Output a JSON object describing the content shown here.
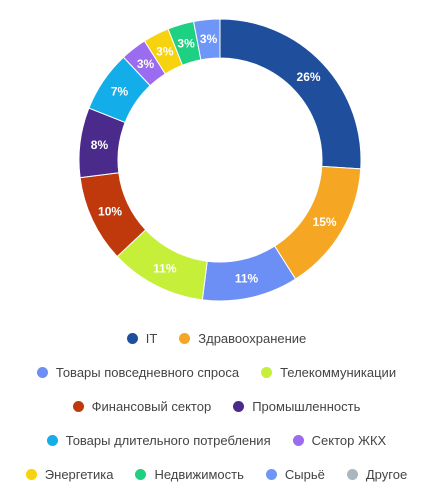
{
  "chart_data": {
    "type": "pie",
    "categories": [
      "IT",
      "Здравоохранение",
      "Товары повседневного спроса",
      "Телекоммуникации",
      "Финансовый сектор",
      "Промышленность",
      "Товары длительного потребления",
      "Сектор ЖКХ",
      "Энергетика",
      "Недвижимость",
      "Сырьё",
      "Другое"
    ],
    "values": [
      26,
      15,
      11,
      11,
      10,
      8,
      7,
      3,
      3,
      3,
      3,
      0
    ],
    "value_labels": [
      "26%",
      "15%",
      "11%",
      "11%",
      "10%",
      "8%",
      "7%",
      "3%",
      "3%",
      "3%",
      "3%",
      ""
    ],
    "colors": [
      "#1f4e9c",
      "#f5a623",
      "#6c8ff5",
      "#c6ef3a",
      "#c0390d",
      "#4a2a8a",
      "#13aeea",
      "#9b6cf0",
      "#f7d20e",
      "#1ed081",
      "#6e96f7",
      "#aab7bf"
    ],
    "donut": true,
    "start": "top",
    "direction": "clockwise",
    "legend_position": "bottom"
  }
}
